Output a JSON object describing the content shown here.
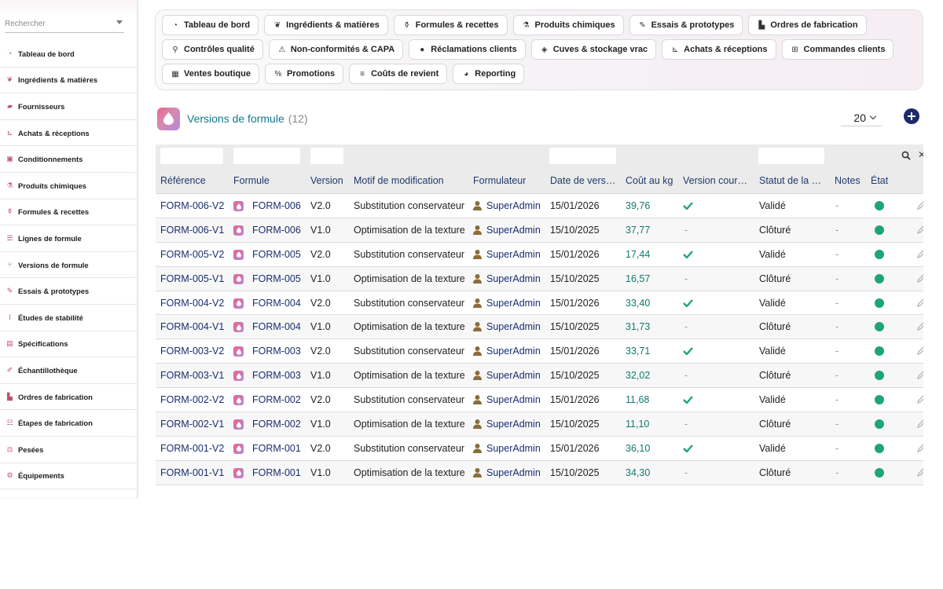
{
  "search": {
    "placeholder": "Rechercher"
  },
  "sidebar": {
    "items": [
      {
        "label": "Tableau de bord",
        "icon": "gauge-icon"
      },
      {
        "label": "Ingrédients & matières",
        "icon": "leaf-icon"
      },
      {
        "label": "Fournisseurs",
        "icon": "truck-icon"
      },
      {
        "label": "Achats & réceptions",
        "icon": "dolly-icon"
      },
      {
        "label": "Conditionnements",
        "icon": "box-icon"
      },
      {
        "label": "Produits chimiques",
        "icon": "chemical-icon"
      },
      {
        "label": "Formules & recettes",
        "icon": "flask-icon"
      },
      {
        "label": "Lignes de formule",
        "icon": "list-icon"
      },
      {
        "label": "Versions de formule",
        "icon": "branch-icon"
      },
      {
        "label": "Essais & prototypes",
        "icon": "eyedropper-icon"
      },
      {
        "label": "Études de stabilité",
        "icon": "thermometer-icon"
      },
      {
        "label": "Spécifications",
        "icon": "clipboard-icon"
      },
      {
        "label": "Échantillothèque",
        "icon": "syringe-icon"
      },
      {
        "label": "Ordres de fabrication",
        "icon": "industry-icon"
      },
      {
        "label": "Étapes de fabrication",
        "icon": "list-ol-icon"
      },
      {
        "label": "Pesées",
        "icon": "scale-icon"
      },
      {
        "label": "Équipements",
        "icon": "cogs-icon"
      }
    ]
  },
  "topnav": {
    "rows": [
      [
        {
          "label": "Tableau de bord",
          "icon": "gauge-icon"
        },
        {
          "label": "Ingrédients & matières",
          "icon": "leaf-icon"
        },
        {
          "label": "Formules & recettes",
          "icon": "flask-icon"
        },
        {
          "label": "Produits chimiques",
          "icon": "chemical-icon"
        },
        {
          "label": "Essais & prototypes",
          "icon": "eyedropper-icon"
        },
        {
          "label": "Ordres de fabrication",
          "icon": "industry-icon"
        }
      ],
      [
        {
          "label": "Contrôles qualité",
          "icon": "microscope-icon"
        },
        {
          "label": "Non-conformités & CAPA",
          "icon": "warning-icon"
        },
        {
          "label": "Réclamations clients",
          "icon": "comment-icon"
        },
        {
          "label": "Cuves & stockage vrac",
          "icon": "fill-drip-icon"
        },
        {
          "label": "Achats & réceptions",
          "icon": "dolly-icon"
        },
        {
          "label": "Commandes clients",
          "icon": "cart-icon"
        }
      ],
      [
        {
          "label": "Ventes boutique",
          "icon": "cash-register-icon"
        },
        {
          "label": "Promotions",
          "icon": "percent-icon"
        },
        {
          "label": "Coûts de revient",
          "icon": "coins-icon"
        },
        {
          "label": "Reporting",
          "icon": "pie-chart-icon"
        }
      ]
    ]
  },
  "header": {
    "title": "Versions de formule",
    "count": "(12)",
    "page_size": "20"
  },
  "table": {
    "columns": [
      "Référence",
      "Formule",
      "Version",
      "Motif de modification",
      "Formulateur",
      "Date de vers…",
      "Coût au kg",
      "Version cour…",
      "Statut de la …",
      "Notes",
      "État"
    ],
    "rows": [
      {
        "ref": "FORM-006-V2",
        "formula": "FORM-006",
        "version": "V2.0",
        "motif": "Substitution conservateur",
        "user": "SuperAdmin",
        "date": "15/01/2026",
        "cost": "39,76",
        "current": true,
        "status": "Validé",
        "notes": "-"
      },
      {
        "ref": "FORM-006-V1",
        "formula": "FORM-006",
        "version": "V1.0",
        "motif": "Optimisation de la texture",
        "user": "SuperAdmin",
        "date": "15/10/2025",
        "cost": "37,77",
        "current": false,
        "status": "Clôturé",
        "notes": "-"
      },
      {
        "ref": "FORM-005-V2",
        "formula": "FORM-005",
        "version": "V2.0",
        "motif": "Substitution conservateur",
        "user": "SuperAdmin",
        "date": "15/01/2026",
        "cost": "17,44",
        "current": true,
        "status": "Validé",
        "notes": "-"
      },
      {
        "ref": "FORM-005-V1",
        "formula": "FORM-005",
        "version": "V1.0",
        "motif": "Optimisation de la texture",
        "user": "SuperAdmin",
        "date": "15/10/2025",
        "cost": "16,57",
        "current": false,
        "status": "Clôturé",
        "notes": "-"
      },
      {
        "ref": "FORM-004-V2",
        "formula": "FORM-004",
        "version": "V2.0",
        "motif": "Substitution conservateur",
        "user": "SuperAdmin",
        "date": "15/01/2026",
        "cost": "33,40",
        "current": true,
        "status": "Validé",
        "notes": "-"
      },
      {
        "ref": "FORM-004-V1",
        "formula": "FORM-004",
        "version": "V1.0",
        "motif": "Optimisation de la texture",
        "user": "SuperAdmin",
        "date": "15/10/2025",
        "cost": "31,73",
        "current": false,
        "status": "Clôturé",
        "notes": "-"
      },
      {
        "ref": "FORM-003-V2",
        "formula": "FORM-003",
        "version": "V2.0",
        "motif": "Substitution conservateur",
        "user": "SuperAdmin",
        "date": "15/01/2026",
        "cost": "33,71",
        "current": true,
        "status": "Validé",
        "notes": "-"
      },
      {
        "ref": "FORM-003-V1",
        "formula": "FORM-003",
        "version": "V1.0",
        "motif": "Optimisation de la texture",
        "user": "SuperAdmin",
        "date": "15/10/2025",
        "cost": "32,02",
        "current": false,
        "status": "Clôturé",
        "notes": "-"
      },
      {
        "ref": "FORM-002-V2",
        "formula": "FORM-002",
        "version": "V2.0",
        "motif": "Substitution conservateur",
        "user": "SuperAdmin",
        "date": "15/01/2026",
        "cost": "11,68",
        "current": true,
        "status": "Validé",
        "notes": "-"
      },
      {
        "ref": "FORM-002-V1",
        "formula": "FORM-002",
        "version": "V1.0",
        "motif": "Optimisation de la texture",
        "user": "SuperAdmin",
        "date": "15/10/2025",
        "cost": "11,10",
        "current": false,
        "status": "Clôturé",
        "notes": "-"
      },
      {
        "ref": "FORM-001-V2",
        "formula": "FORM-001",
        "version": "V2.0",
        "motif": "Substitution conservateur",
        "user": "SuperAdmin",
        "date": "15/01/2026",
        "cost": "36,10",
        "current": true,
        "status": "Validé",
        "notes": "-"
      },
      {
        "ref": "FORM-001-V1",
        "formula": "FORM-001",
        "version": "V1.0",
        "motif": "Optimisation de la texture",
        "user": "SuperAdmin",
        "date": "15/10/2025",
        "cost": "34,30",
        "current": false,
        "status": "Clôturé",
        "notes": "-"
      }
    ]
  },
  "colors": {
    "accent": "#117a8b",
    "link": "#1a2e6f",
    "cost": "#117a6b",
    "check": "#1ea672",
    "state_active": "#1ea672",
    "add_button": "#1c2a6b"
  }
}
